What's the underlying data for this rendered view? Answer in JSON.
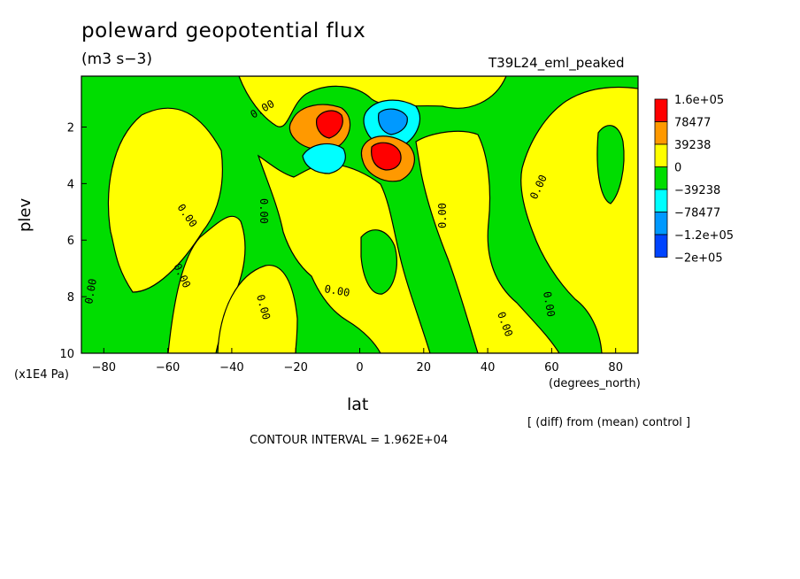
{
  "chart_data": {
    "type": "heatmap",
    "title": "poleward geopotential flux",
    "units": "(m3 s−3)",
    "run_name": "T39L24_eml_peaked",
    "xlabel": "lat",
    "x_units": "(degrees_north)",
    "ylabel": "plev",
    "y_units": "(x1E4 Pa)",
    "xlim": [
      -87,
      87
    ],
    "ylim": [
      10,
      0.2
    ],
    "x_ticks": [
      -80,
      -60,
      -40,
      -20,
      0,
      20,
      40,
      60,
      80
    ],
    "x_tick_labels": [
      "−80",
      "−60",
      "−40",
      "−20",
      "0",
      "20",
      "40",
      "60",
      "80"
    ],
    "y_ticks": [
      2,
      4,
      6,
      8,
      10
    ],
    "contour_label": "0.00",
    "legend": {
      "labels": [
        "1.6e+05",
        "78477",
        "39238",
        "0",
        "−39238",
        "−78477",
        "−1.2e+05",
        "−2e+05"
      ],
      "colors": [
        "#ff0000",
        "#ff9900",
        "#ffff00",
        "#00dd00",
        "#00ffff",
        "#0099ff",
        "#0044ff"
      ]
    },
    "note": "[ (diff) from (mean) control ]",
    "contour_interval": "CONTOUR INTERVAL = 1.962E+04",
    "colors": {
      "positive": "#ffff00",
      "negative": "#00dd00",
      "strong_positive": "#ff0000",
      "moderate_positive": "#ff9900",
      "moderate_negative": "#00ffff",
      "strong_negative": "#0099ff"
    }
  }
}
